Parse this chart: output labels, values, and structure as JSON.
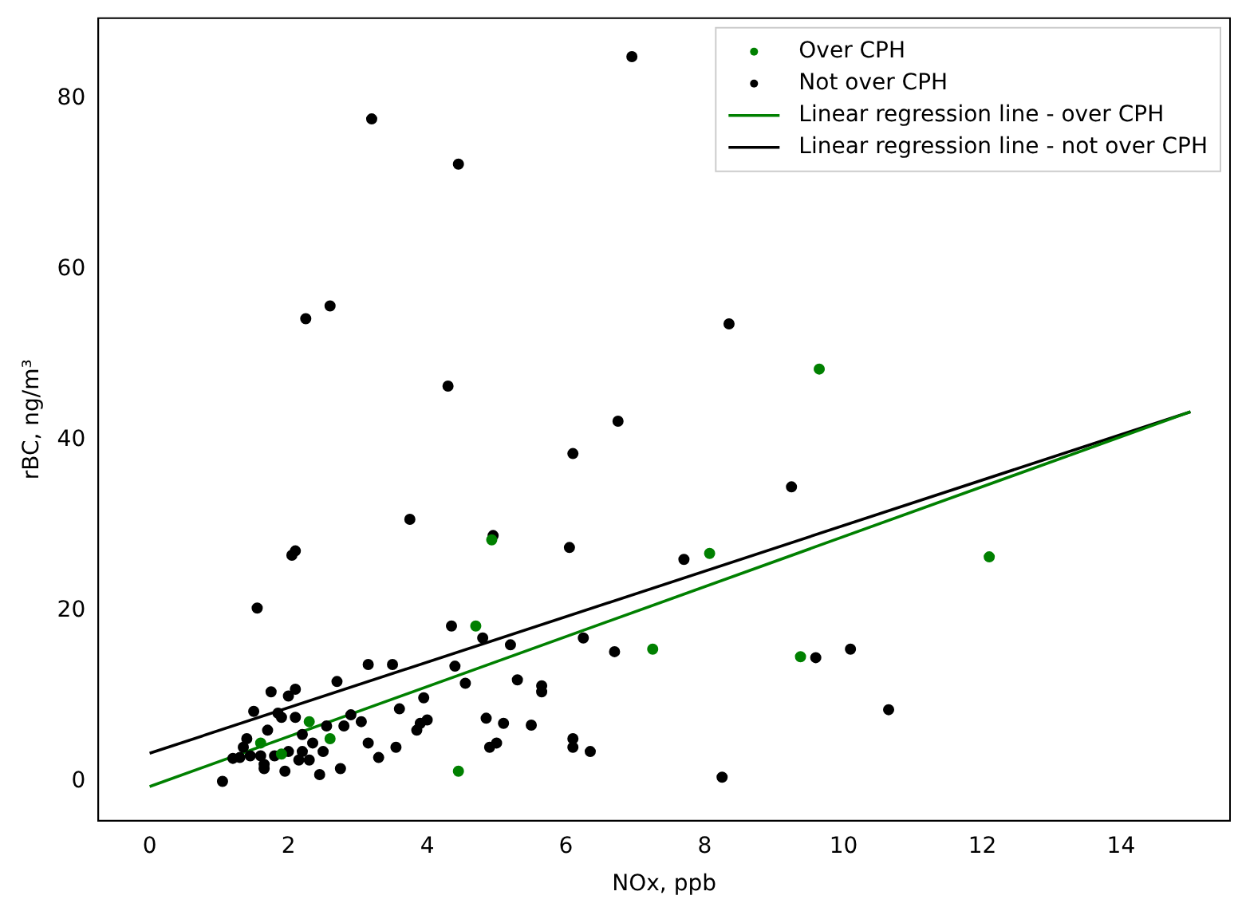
{
  "chart_data": {
    "type": "scatter",
    "xlabel": "NOx, ppb",
    "ylabel": "rBC, ng/m³",
    "xlim": [
      -0.74,
      15.57
    ],
    "ylim": [
      -4.6,
      89.4
    ],
    "xticks": [
      0,
      2,
      4,
      6,
      8,
      10,
      12,
      14
    ],
    "yticks": [
      0,
      20,
      40,
      60,
      80
    ],
    "grid": false,
    "legend": "top right",
    "marker": "circle",
    "series": [
      {
        "name": "Over CPH",
        "color": "#008000",
        "x": [
          1.6,
          1.9,
          2.3,
          2.6,
          4.45,
          4.7,
          4.93,
          7.25,
          8.07,
          9.38,
          9.65,
          12.1
        ],
        "values": [
          4.5,
          3.2,
          7,
          5,
          1.2,
          18.2,
          28.3,
          15.5,
          26.7,
          14.6,
          48.3,
          26.3
        ]
      },
      {
        "name": "Not over CPH",
        "color": "#000000",
        "x": [
          1.05,
          1.2,
          1.3,
          1.35,
          1.4,
          1.45,
          1.5,
          1.55,
          1.6,
          1.65,
          1.65,
          1.7,
          1.75,
          1.8,
          1.85,
          1.9,
          1.95,
          2.0,
          2.0,
          2.05,
          2.1,
          2.1,
          2.1,
          2.15,
          2.2,
          2.2,
          2.25,
          2.3,
          2.35,
          2.45,
          2.5,
          2.55,
          2.6,
          2.7,
          2.75,
          2.8,
          2.9,
          3.05,
          3.15,
          3.15,
          3.2,
          3.3,
          3.5,
          3.55,
          3.6,
          3.75,
          3.85,
          3.9,
          3.95,
          4.0,
          4.3,
          4.35,
          4.4,
          4.45,
          4.55,
          4.8,
          4.85,
          4.9,
          4.95,
          5.0,
          5.1,
          5.2,
          5.3,
          5.5,
          5.65,
          5.65,
          6.05,
          6.1,
          6.1,
          6.1,
          6.25,
          6.35,
          6.7,
          6.75,
          6.95,
          7.7,
          8.25,
          8.35,
          9.25,
          9.6,
          10.1,
          10.65
        ],
        "values": [
          0,
          2.7,
          2.8,
          4,
          5,
          3,
          8.2,
          20.3,
          3,
          2,
          1.5,
          6,
          10.5,
          3,
          8,
          7.5,
          1.2,
          10,
          3.5,
          26.5,
          27,
          7.5,
          10.8,
          2.5,
          5.5,
          3.5,
          54.2,
          2.5,
          4.5,
          0.8,
          3.5,
          6.5,
          55.7,
          11.7,
          1.5,
          6.5,
          7.8,
          7,
          4.5,
          13.7,
          77.6,
          2.8,
          13.7,
          4,
          8.5,
          30.7,
          6,
          6.8,
          9.8,
          7.2,
          46.3,
          18.2,
          13.5,
          72.3,
          11.5,
          16.8,
          7.4,
          4,
          28.8,
          4.5,
          6.8,
          16,
          11.9,
          6.6,
          11.2,
          10.5,
          27.4,
          4,
          5,
          38.4,
          16.8,
          3.5,
          15.2,
          42.2,
          84.9,
          26,
          0.5,
          53.6,
          34.5,
          14.5,
          15.5,
          8.4
        ]
      },
      {
        "name": "Linear regression line - over CPH",
        "type": "line",
        "color": "#008000",
        "marker": "none",
        "x": [
          0,
          15
        ],
        "values": [
          -0.6,
          43.3
        ]
      },
      {
        "name": "Linear regression line - not over CPH",
        "type": "line",
        "color": "#000000",
        "marker": "none",
        "x": [
          0,
          15
        ],
        "values": [
          3.3,
          43.3
        ]
      }
    ]
  }
}
